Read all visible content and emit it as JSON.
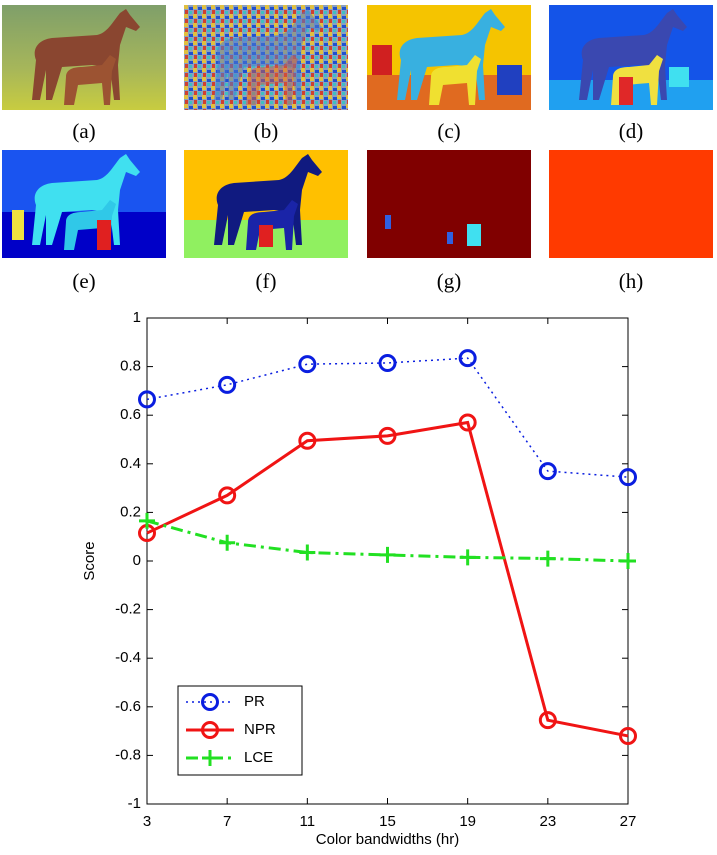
{
  "panel_labels": [
    "(a)",
    "(b)",
    "(c)",
    "(d)",
    "(e)",
    "(f)",
    "(g)",
    "(h)"
  ],
  "chart_data": {
    "type": "line",
    "xlabel": "Color bandwidths (hr)",
    "ylabel": "Score",
    "x": [
      3,
      7,
      11,
      15,
      19,
      23,
      27
    ],
    "series": [
      {
        "name": "PR",
        "color": "#0a1ee0",
        "linestyle": "dotted",
        "marker": "o",
        "values": [
          0.665,
          0.725,
          0.81,
          0.815,
          0.835,
          0.37,
          0.345
        ]
      },
      {
        "name": "NPR",
        "color": "#f01414",
        "linestyle": "solid",
        "marker": "o",
        "values": [
          0.115,
          0.27,
          0.495,
          0.515,
          0.57,
          -0.655,
          -0.72
        ]
      },
      {
        "name": "LCE",
        "color": "#22e022",
        "linestyle": "dashdot",
        "marker": "+",
        "values": [
          0.165,
          0.075,
          0.035,
          0.025,
          0.015,
          0.01,
          0.0
        ]
      }
    ],
    "xlim": [
      3,
      27
    ],
    "xticks": [
      3,
      7,
      11,
      15,
      19,
      23,
      27
    ],
    "ylim": [
      -1,
      1
    ],
    "yticks": [
      -1,
      -0.8,
      -0.6,
      -0.4,
      -0.2,
      0,
      0.2,
      0.4,
      0.6,
      0.8,
      1
    ],
    "legend": "lower left"
  }
}
